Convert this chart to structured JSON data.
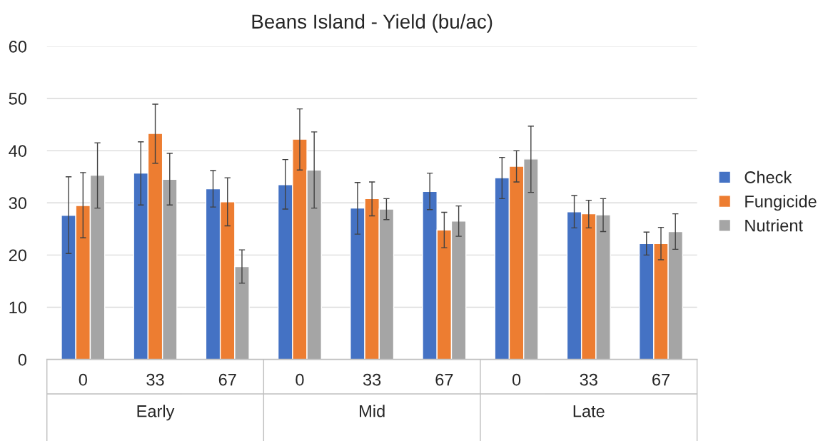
{
  "chart_data": {
    "type": "bar",
    "title": "Beans Island - Yield (bu/ac)",
    "categories": [
      "0",
      "33",
      "67",
      "0",
      "33",
      "67",
      "0",
      "33",
      "67"
    ],
    "annotations": [
      "Early",
      "Mid",
      "Late"
    ],
    "series": [
      {
        "name": "Check",
        "color": "#4472c4",
        "values": [
          27.6,
          35.7,
          32.7,
          33.5,
          29.0,
          32.2,
          34.8,
          28.3,
          22.2
        ],
        "errors": [
          [
            20.3,
            35.0
          ],
          [
            29.6,
            41.7
          ],
          [
            29.2,
            36.2
          ],
          [
            28.8,
            38.3
          ],
          [
            24.0,
            33.9
          ],
          [
            28.7,
            35.7
          ],
          [
            30.8,
            38.7
          ],
          [
            25.2,
            31.4
          ],
          [
            20.0,
            24.4
          ]
        ]
      },
      {
        "name": "Fungicide",
        "color": "#ed7d31",
        "values": [
          29.5,
          43.3,
          30.2,
          42.2,
          30.8,
          24.8,
          37.0,
          27.9,
          22.2
        ],
        "errors": [
          [
            23.3,
            35.8
          ],
          [
            37.6,
            48.9
          ],
          [
            25.6,
            34.8
          ],
          [
            36.3,
            48.0
          ],
          [
            27.5,
            34.0
          ],
          [
            21.4,
            28.2
          ],
          [
            34.0,
            40.0
          ],
          [
            25.2,
            30.5
          ],
          [
            19.1,
            25.3
          ]
        ]
      },
      {
        "name": "Nutrient",
        "color": "#a5a5a5",
        "values": [
          35.3,
          34.5,
          17.8,
          36.3,
          28.8,
          26.5,
          38.4,
          27.7,
          24.5
        ],
        "errors": [
          [
            29.0,
            41.5
          ],
          [
            29.6,
            39.5
          ],
          [
            14.6,
            21.0
          ],
          [
            29.0,
            43.6
          ],
          [
            26.8,
            30.8
          ],
          [
            23.6,
            29.4
          ],
          [
            32.0,
            44.7
          ],
          [
            24.5,
            30.8
          ],
          [
            21.1,
            27.9
          ]
        ]
      }
    ],
    "ylim": [
      0,
      60
    ],
    "yticks": [
      0,
      10,
      20,
      30,
      40,
      50,
      60
    ],
    "grid": "y",
    "legend": "right"
  }
}
